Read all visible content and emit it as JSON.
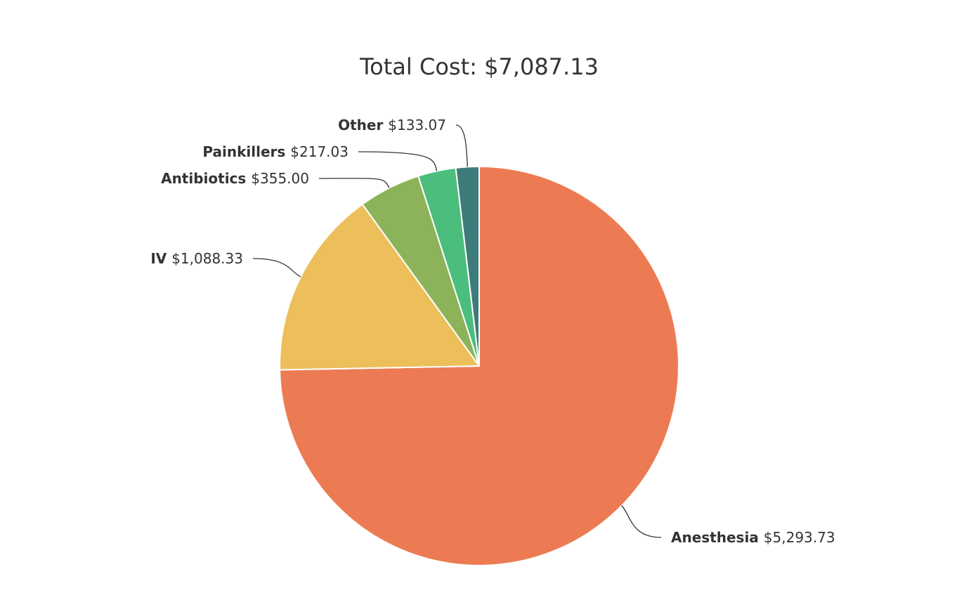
{
  "chart_data": {
    "type": "pie",
    "title": "Total Cost: $7,087.13",
    "slices": [
      {
        "name": "Anesthesia",
        "value": 5293.73,
        "value_label": "$5,293.73",
        "color": "#ec7b53"
      },
      {
        "name": "IV",
        "value": 1088.33,
        "value_label": "$1,088.33",
        "color": "#ecbf5b"
      },
      {
        "name": "Antibiotics",
        "value": 355.0,
        "value_label": "$355.00",
        "color": "#8db35a"
      },
      {
        "name": "Painkillers",
        "value": 217.03,
        "value_label": "$217.03",
        "color": "#4bbd7c"
      },
      {
        "name": "Other",
        "value": 133.07,
        "value_label": "$133.07",
        "color": "#3e7b7b"
      }
    ],
    "direction": "clockwise-from-top",
    "legend": "none"
  }
}
